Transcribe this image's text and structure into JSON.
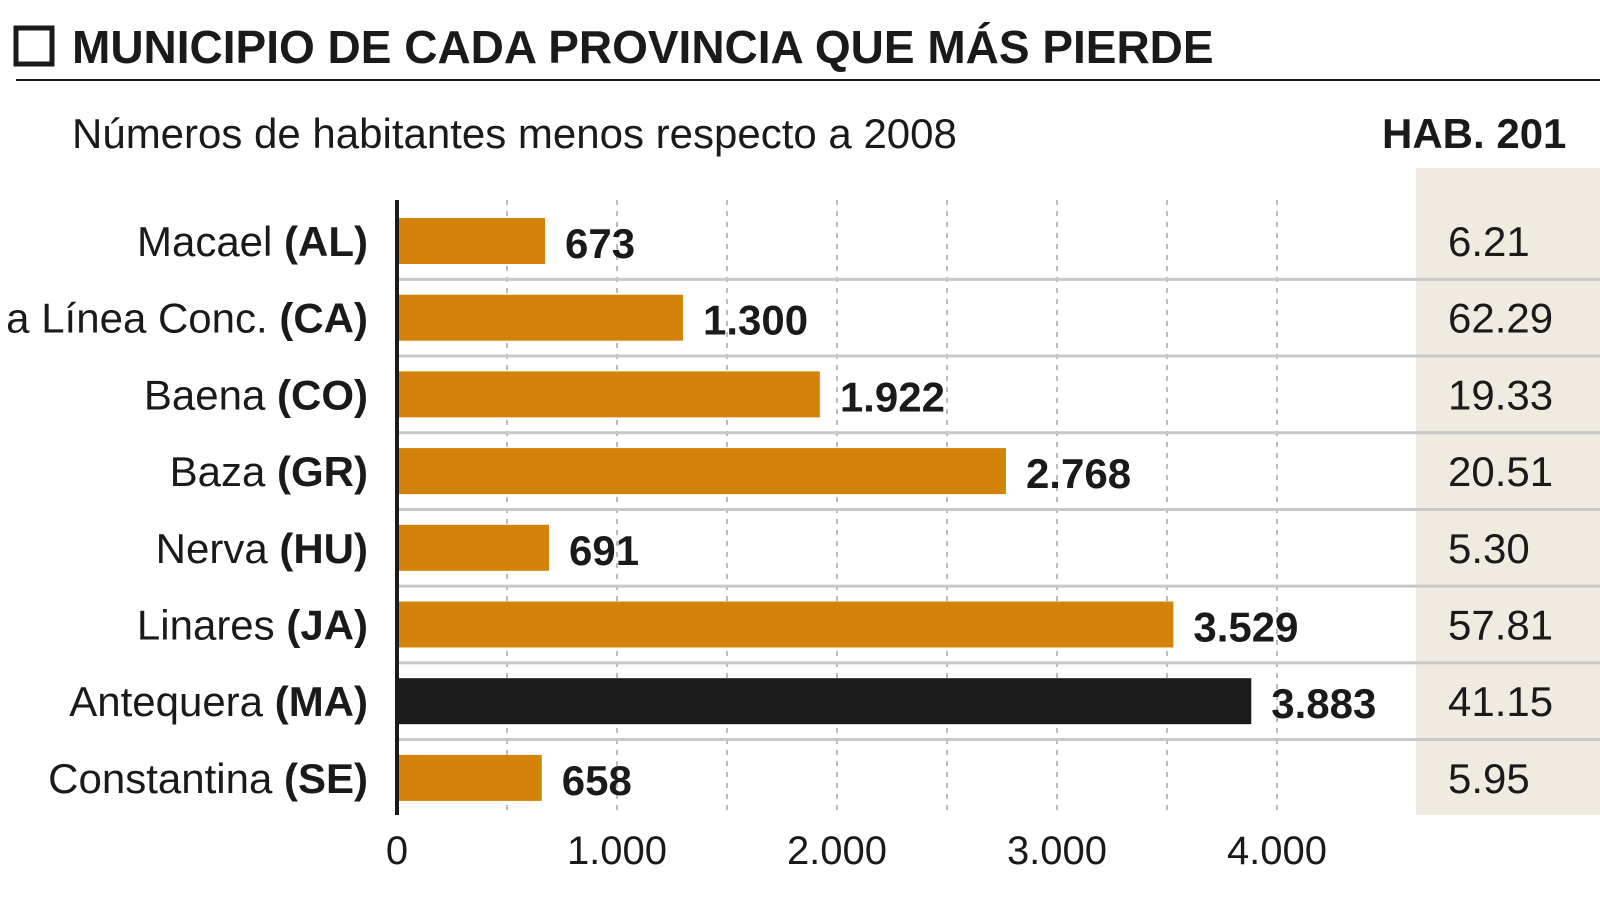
{
  "chart_data": {
    "type": "bar",
    "orientation": "horizontal",
    "title": "MUNICIPIO DE CADA PROVINCIA QUE MÁS PIERDE",
    "subtitle": "Números de habitantes menos respecto a 2008",
    "categories": [
      {
        "name": "Macael",
        "code": "(AL)"
      },
      {
        "name": "a Línea Conc.",
        "code": "(CA)"
      },
      {
        "name": "Baena",
        "code": "(CO)"
      },
      {
        "name": "Baza",
        "code": "(GR)"
      },
      {
        "name": "Nerva",
        "code": "(HU)"
      },
      {
        "name": "Linares",
        "code": "(JA)"
      },
      {
        "name": "Antequera",
        "code": "(MA)"
      },
      {
        "name": "Constantina",
        "code": "(SE)"
      }
    ],
    "values": [
      673,
      1300,
      1922,
      2768,
      691,
      3529,
      3883,
      658
    ],
    "value_labels": [
      "673",
      "1.300",
      "1.922",
      "2.768",
      "691",
      "3.529",
      "3.883",
      "658"
    ],
    "highlight_index": 6,
    "xlim": [
      0,
      4000
    ],
    "xticks": [
      0,
      1000,
      2000,
      3000,
      4000
    ],
    "xtick_labels": [
      "0",
      "1.000",
      "2.000",
      "3.000",
      "4.000"
    ],
    "grid": "vertical dashed every 500",
    "colors": {
      "bar": "#d4830a",
      "highlight": "#1a1a1a",
      "column_bg": "#efebe0"
    },
    "side_column": {
      "header": "HAB. 201",
      "values": [
        "6.21",
        "62.29",
        "19.33",
        "20.51",
        "5.30",
        "57.81",
        "41.15",
        "5.95"
      ]
    }
  }
}
